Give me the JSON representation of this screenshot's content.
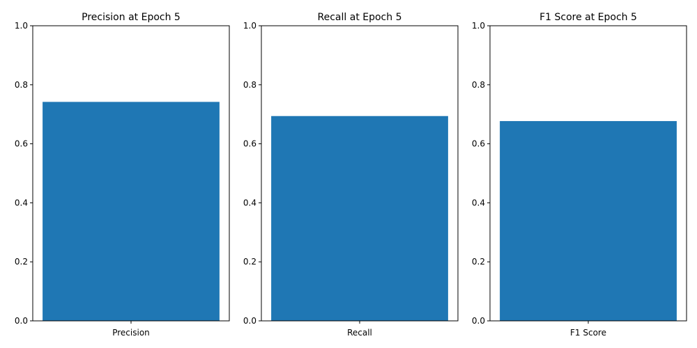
{
  "chart_data": [
    {
      "type": "bar",
      "title": "Precision at Epoch 5",
      "categories": [
        "Precision"
      ],
      "values": [
        0.742
      ],
      "ylim": [
        0,
        1
      ],
      "yticks": [
        "0.0",
        "0.2",
        "0.4",
        "0.6",
        "0.8",
        "1.0"
      ],
      "grid": false,
      "color": "#1f77b4"
    },
    {
      "type": "bar",
      "title": "Recall at Epoch 5",
      "categories": [
        "Recall"
      ],
      "values": [
        0.694
      ],
      "ylim": [
        0,
        1
      ],
      "yticks": [
        "0.0",
        "0.2",
        "0.4",
        "0.6",
        "0.8",
        "1.0"
      ],
      "grid": false,
      "color": "#1f77b4"
    },
    {
      "type": "bar",
      "title": "F1 Score at Epoch 5",
      "categories": [
        "F1 Score"
      ],
      "values": [
        0.677
      ],
      "ylim": [
        0,
        1
      ],
      "yticks": [
        "0.0",
        "0.2",
        "0.4",
        "0.6",
        "0.8",
        "1.0"
      ],
      "grid": false,
      "color": "#1f77b4"
    }
  ]
}
